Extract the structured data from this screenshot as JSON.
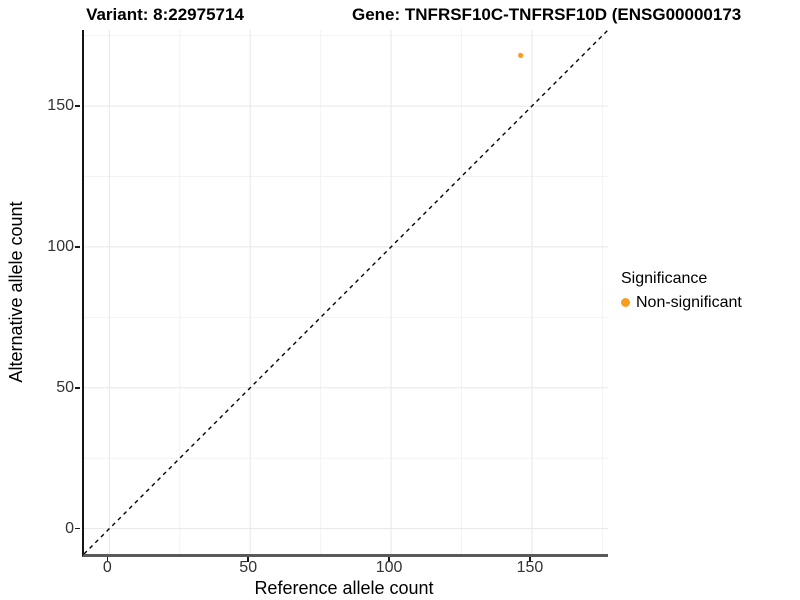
{
  "header": {
    "variant_title": "Variant: 8:22975714",
    "gene_title": "Gene: TNFRSF10C-TNFRSF10D (ENSG00000173"
  },
  "chart_data": {
    "type": "scatter",
    "xlabel": "Reference allele count",
    "ylabel": "Alternative allele count",
    "xlim": [
      -9,
      177
    ],
    "ylim": [
      -9,
      177
    ],
    "x_ticks": [
      0,
      50,
      100,
      150
    ],
    "y_ticks": [
      0,
      50,
      100,
      150
    ],
    "x_minor_ticks": [
      25,
      75,
      125,
      175
    ],
    "y_minor_ticks": [
      25,
      75,
      125,
      175
    ],
    "grid": "major+minor",
    "identity_line": {
      "style": "dashed",
      "color": "#000000",
      "from": -9,
      "to": 177
    },
    "series": [
      {
        "name": "Non-significant",
        "color": "#FB9D1C",
        "points": [
          {
            "x": 146,
            "y": 168
          }
        ]
      }
    ],
    "legend": {
      "title": "Significance",
      "position": "right",
      "items": [
        {
          "label": "Non-significant",
          "color": "#FB9D1C"
        }
      ]
    }
  },
  "colors": {
    "point_orange": "#FB9D1C",
    "grid_major": "#e7e7e7",
    "grid_minor": "#f3f3f3",
    "axis_text": "#333333",
    "identity_line": "#000000"
  }
}
